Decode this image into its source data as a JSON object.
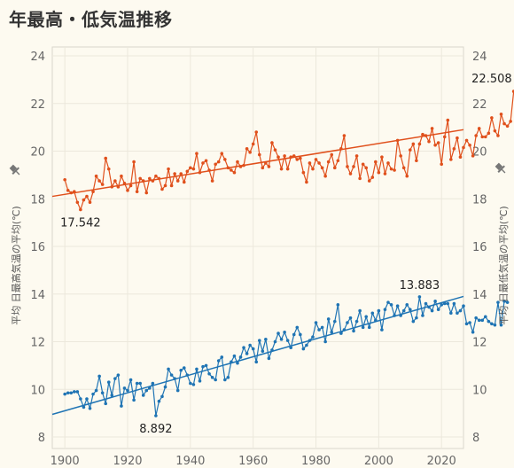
{
  "page_title": "年最高・低気温推移",
  "chart_data": {
    "type": "line",
    "title": "年最高・低気温推移",
    "ylabel_left": "平均 日最高気温の平均(℃)",
    "ylabel_right": "平均 日最低気温の平均(℃)",
    "xlim": [
      1896,
      2027
    ],
    "ylim": [
      8,
      24
    ],
    "x_ticks": [
      "1900",
      "1920",
      "1940",
      "1960",
      "1980",
      "2000",
      "2020"
    ],
    "y_ticks": [
      "8",
      "10",
      "12",
      "14",
      "16",
      "18",
      "20",
      "22",
      "24"
    ],
    "grid": true,
    "colors": {
      "high": "#e0501c",
      "low": "#1f74b4"
    },
    "series": [
      {
        "name": "平均 日最高気温の平均(℃)",
        "color": "#e0501c",
        "x_start": 1900,
        "values": [
          18.8,
          18.35,
          18.25,
          18.3,
          17.85,
          17.542,
          17.95,
          18.1,
          17.85,
          18.3,
          18.95,
          18.75,
          18.6,
          19.7,
          19.25,
          18.5,
          18.75,
          18.5,
          18.95,
          18.65,
          18.35,
          18.55,
          19.55,
          18.3,
          18.85,
          18.75,
          18.25,
          18.85,
          18.75,
          18.95,
          18.85,
          18.4,
          18.55,
          19.25,
          18.55,
          19.05,
          18.75,
          19.05,
          18.7,
          19.15,
          19.3,
          19.25,
          19.9,
          19.1,
          19.5,
          19.6,
          19.2,
          18.75,
          19.45,
          19.55,
          19.9,
          19.65,
          19.3,
          19.2,
          19.1,
          19.55,
          19.35,
          19.4,
          20.1,
          19.95,
          20.3,
          20.8,
          19.85,
          19.3,
          19.5,
          19.35,
          20.35,
          20.05,
          19.75,
          19.25,
          19.8,
          19.25,
          19.75,
          19.8,
          19.65,
          19.7,
          19.1,
          18.7,
          19.5,
          19.25,
          19.65,
          19.5,
          19.3,
          18.95,
          19.55,
          19.85,
          19.3,
          19.6,
          20.1,
          20.65,
          19.35,
          19.05,
          19.35,
          19.8,
          18.85,
          19.45,
          19.3,
          18.75,
          18.9,
          19.55,
          19.1,
          19.75,
          19.05,
          19.5,
          19.25,
          19.2,
          20.45,
          19.8,
          19.3,
          18.95,
          20.05,
          20.3,
          19.6,
          20.3,
          20.7,
          20.65,
          20.4,
          20.95,
          20.25,
          20.35,
          19.45,
          20.6,
          21.3,
          19.65,
          20.1,
          20.55,
          19.75,
          20.15,
          20.45,
          20.25,
          19.8,
          20.65,
          20.95,
          20.6,
          20.6,
          20.75,
          21.4,
          20.85,
          20.65,
          21.55,
          21.15,
          21.05,
          21.25,
          22.508
        ]
      },
      {
        "name": "平均 日最低気温の平均(℃)",
        "color": "#1f74b4",
        "x_start": 1900,
        "values": [
          9.8,
          9.85,
          9.85,
          9.9,
          9.9,
          9.6,
          9.25,
          9.6,
          9.2,
          9.8,
          9.95,
          10.55,
          9.85,
          9.4,
          10.3,
          9.75,
          10.45,
          10.6,
          9.3,
          10.05,
          9.95,
          10.4,
          9.55,
          10.25,
          10.25,
          9.75,
          9.95,
          10.05,
          10.25,
          8.892,
          9.5,
          9.7,
          10.1,
          10.85,
          10.6,
          10.45,
          9.95,
          10.8,
          10.9,
          10.6,
          10.25,
          10.2,
          10.85,
          10.35,
          10.95,
          11.0,
          10.65,
          10.5,
          10.4,
          11.2,
          11.35,
          10.4,
          10.5,
          11.15,
          11.4,
          11.1,
          11.35,
          11.75,
          11.5,
          11.85,
          11.7,
          11.15,
          12.05,
          11.6,
          12.1,
          11.3,
          11.65,
          12.0,
          12.35,
          12.1,
          12.4,
          12.05,
          11.75,
          12.3,
          12.6,
          12.3,
          11.7,
          11.85,
          12.05,
          12.2,
          12.8,
          12.5,
          12.6,
          12.0,
          12.95,
          12.4,
          12.85,
          13.55,
          12.35,
          12.5,
          12.8,
          13.0,
          12.45,
          12.85,
          13.3,
          12.6,
          13.05,
          12.6,
          13.2,
          12.9,
          13.3,
          12.5,
          13.35,
          13.65,
          13.55,
          13.1,
          13.5,
          13.1,
          13.3,
          13.55,
          13.35,
          12.85,
          13.0,
          13.883,
          13.1,
          13.6,
          13.45,
          13.3,
          13.7,
          13.35,
          13.55,
          13.6,
          13.6,
          13.2,
          13.6,
          13.2,
          13.3,
          13.5,
          12.75,
          12.8,
          12.4,
          13.0,
          12.9,
          12.9,
          13.05,
          12.85,
          12.75,
          12.7,
          13.65,
          12.7,
          13.7,
          13.65
        ]
      }
    ],
    "trend_lines": [
      {
        "name": "high",
        "y_at_xmin": 18.1,
        "y_at_xmax": 20.9
      },
      {
        "name": "low",
        "y_at_xmin": 8.95,
        "y_at_xmax": 13.9
      }
    ],
    "annotations": [
      {
        "text": "22.508",
        "series": "high",
        "label_pos": "above-left"
      },
      {
        "text": "17.542",
        "series": "high",
        "label_pos": "below"
      },
      {
        "text": "13.883",
        "series": "low",
        "label_pos": "above"
      },
      {
        "text": "8.892",
        "series": "low",
        "label_pos": "below"
      }
    ]
  }
}
